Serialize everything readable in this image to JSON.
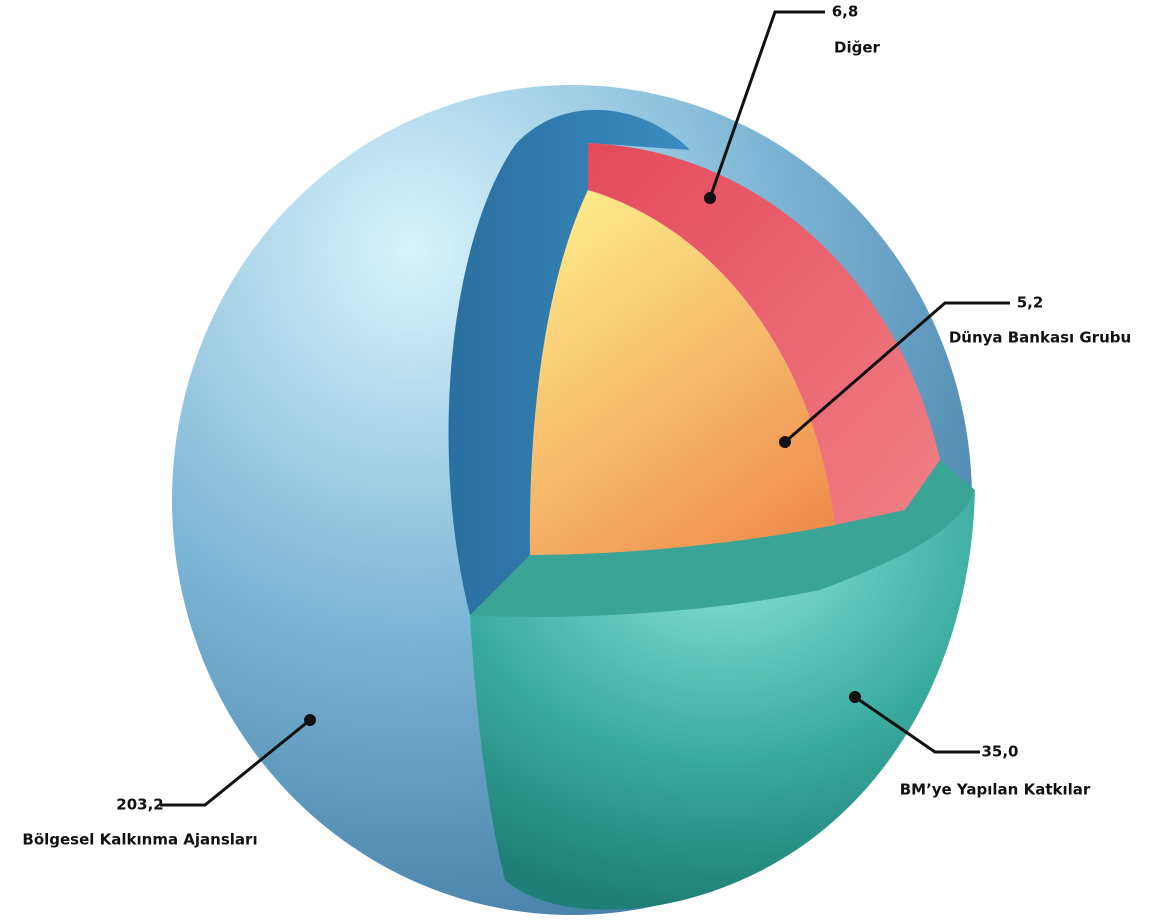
{
  "chart_data": {
    "type": "sphere",
    "categories": [
      "Diğer",
      "Dünya Bankası Grubu",
      "BM’ye Yapılan Katkılar",
      "Bölgesel Kalkınma Ajansları"
    ],
    "values": [
      6.8,
      5.2,
      35.0,
      203.2
    ],
    "value_labels": [
      "6,8",
      "5,2",
      "35,0",
      "203,2"
    ],
    "colors": [
      "#e04a5c",
      "#f6b862",
      "#3aa597",
      "#5a9cc4"
    ]
  }
}
